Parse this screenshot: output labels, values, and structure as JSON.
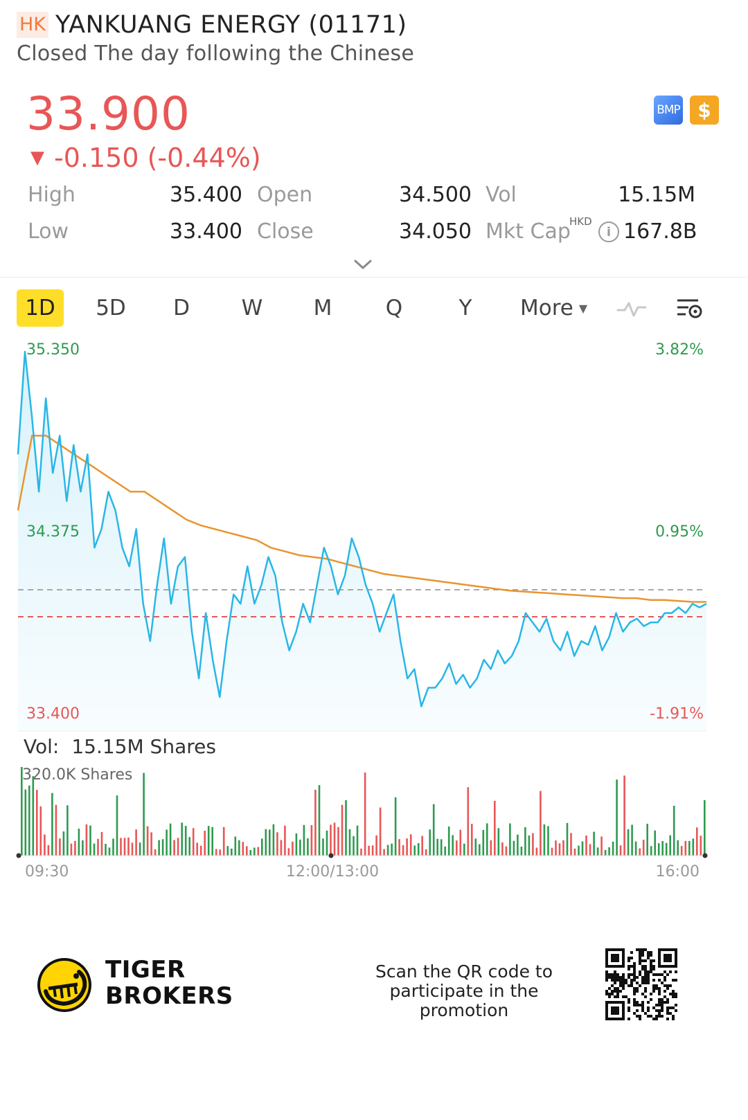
{
  "header": {
    "market": "HK",
    "stock_name": "YANKUANG ENERGY (01171)",
    "status": "Closed The day following the Chinese"
  },
  "quote": {
    "price": "33.900",
    "change": "-0.150 (-0.44%)",
    "direction_icon": "down-triangle-icon"
  },
  "badges": {
    "bmp": "BMP",
    "dollar": "$"
  },
  "stats": {
    "high_label": "High",
    "high_value": "35.400",
    "open_label": "Open",
    "open_value": "34.500",
    "vol_label": "Vol",
    "vol_value": "15.15M",
    "low_label": "Low",
    "low_value": "33.400",
    "close_label": "Close",
    "close_value": "34.050",
    "mktcap_label": "Mkt Cap",
    "mktcap_currency": "HKD",
    "mktcap_value": "167.8B"
  },
  "tabs": [
    "1D",
    "5D",
    "D",
    "W",
    "M",
    "Q",
    "Y"
  ],
  "active_tab": "1D",
  "more_label": "More",
  "colors": {
    "up": "#2e9a4f",
    "down": "#e85656",
    "price_line": "#29b6e6",
    "avg_line": "#e8952e",
    "accent": "#ffde2a"
  },
  "chart_data": [
    {
      "type": "line",
      "y_ticks_left": [
        "35.350",
        "34.375",
        "33.400"
      ],
      "y_ticks_right": [
        "3.82%",
        "0.95%",
        "-1.91%"
      ],
      "ylim": [
        33.4,
        35.35
      ],
      "prev_close": 34.05,
      "current": 33.9,
      "x_ticks": [
        "09:30",
        "12:00/13:00",
        "16:00"
      ],
      "series": [
        {
          "values": [
            34.8,
            35.35,
            35.0,
            34.6,
            35.1,
            34.7,
            34.9,
            34.55,
            34.85,
            34.6,
            34.8,
            34.3,
            34.4,
            34.6,
            34.5,
            34.3,
            34.2,
            34.4,
            34.0,
            33.8,
            34.1,
            34.35,
            34.0,
            34.2,
            34.25,
            33.85,
            33.6,
            33.95,
            33.7,
            33.5,
            33.8,
            34.05,
            34.0,
            34.2,
            34.0,
            34.1,
            34.25,
            34.15,
            33.9,
            33.75,
            33.85,
            34.0,
            33.9,
            34.1,
            34.3,
            34.2,
            34.05,
            34.15,
            34.35,
            34.25,
            34.1,
            34.0,
            33.85,
            33.95,
            34.05,
            33.8,
            33.6,
            33.65,
            33.45,
            33.55,
            33.55,
            33.6,
            33.68,
            33.57,
            33.62,
            33.55,
            33.6,
            33.7,
            33.65,
            33.75,
            33.68,
            33.72,
            33.8,
            33.95,
            33.9,
            33.85,
            33.92,
            33.8,
            33.75,
            33.85,
            33.72,
            33.8,
            33.78,
            33.88,
            33.75,
            33.82,
            33.95,
            33.85,
            33.9,
            33.92,
            33.88,
            33.9,
            33.9,
            33.95,
            33.95,
            33.98,
            33.95,
            34.0,
            33.98,
            34.0
          ]
        },
        {
          "values": [
            34.5,
            34.9,
            34.9,
            34.85,
            34.8,
            34.75,
            34.7,
            34.65,
            34.6,
            34.6,
            34.55,
            34.5,
            34.45,
            34.42,
            34.4,
            34.38,
            34.36,
            34.34,
            34.3,
            34.28,
            34.26,
            34.25,
            34.24,
            34.22,
            34.2,
            34.18,
            34.16,
            34.15,
            34.14,
            34.13,
            34.12,
            34.11,
            34.1,
            34.09,
            34.08,
            34.07,
            34.065,
            34.06,
            34.055,
            34.05,
            34.045,
            34.04,
            34.035,
            34.03,
            34.03,
            34.02,
            34.02,
            34.015,
            34.01,
            34.01
          ]
        }
      ]
    },
    {
      "type": "bar",
      "title": "Vol:",
      "total": "15.15M Shares",
      "max_label": "320.0K Shares",
      "ylim": [
        0,
        320
      ]
    }
  ],
  "footer": {
    "brand_line1": "TIGER",
    "brand_line2": "BROKERS",
    "promo": "Scan the QR code to participate in the promotion"
  }
}
